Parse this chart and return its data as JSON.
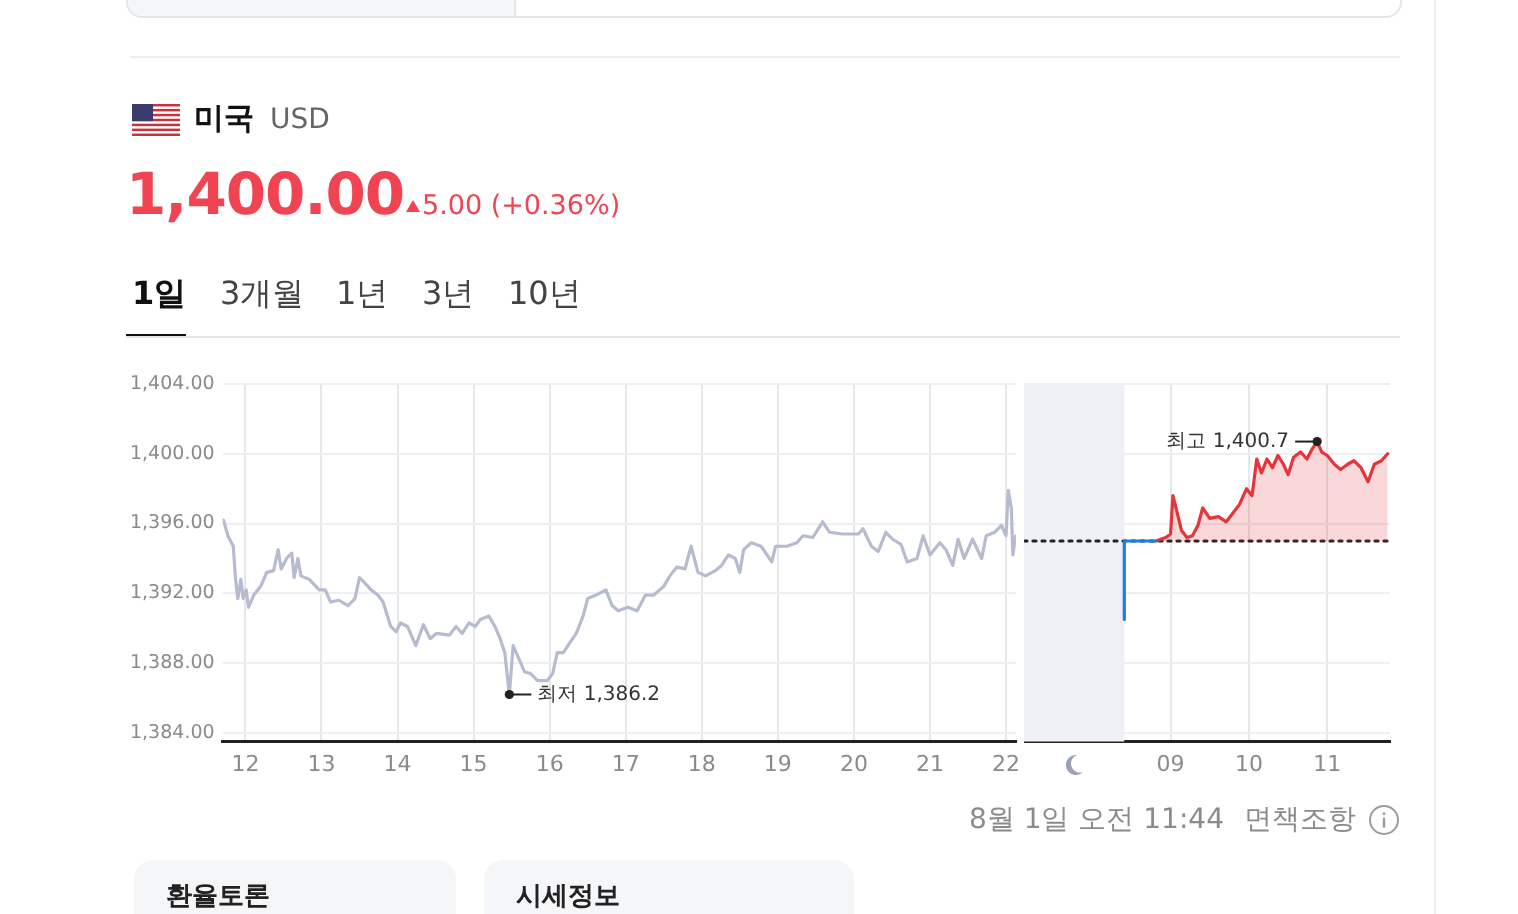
{
  "chart_data": [
    {
      "type": "line",
      "title": "미국",
      "subtitle": "USD",
      "annotations": [
        "1,400.00",
        "5.00 (+0.36%)",
        "1일",
        "3개월",
        "1년",
        "3년",
        "10년",
        {
          "text": "최저 1,386.2",
          "x": 15.47,
          "y": 1386.2
        }
      ],
      "xlim": [
        11.7,
        22.13
      ],
      "xticks": [
        12,
        13,
        14,
        15,
        16,
        17,
        18,
        19,
        20,
        21,
        22
      ],
      "ylim": [
        1383.5,
        1404
      ],
      "yticks": [
        {
          "value": 1384,
          "label": "1,384.00"
        },
        {
          "value": 1388,
          "label": "1,388.00"
        },
        {
          "value": 1392,
          "label": "1,392.00"
        },
        {
          "value": 1396,
          "label": "1,396.00"
        },
        {
          "value": 1400,
          "label": "1,400.00"
        },
        {
          "value": 1404,
          "label": "1,404.00"
        }
      ],
      "grid": true,
      "legend": false,
      "series": [
        {
          "color": "#b7bbd0",
          "x": [
            11.71,
            11.77,
            11.84,
            11.87,
            11.9,
            11.94,
            11.97,
            12.01,
            12.04,
            12.11,
            12.2,
            12.28,
            12.37,
            12.43,
            12.47,
            12.54,
            12.61,
            12.64,
            12.69,
            12.73,
            12.84,
            12.97,
            13.05,
            13.12,
            13.23,
            13.35,
            13.44,
            13.5,
            13.59,
            13.65,
            13.74,
            13.81,
            13.91,
            13.98,
            14.04,
            14.13,
            14.24,
            14.34,
            14.43,
            14.51,
            14.68,
            14.77,
            14.85,
            14.94,
            15.02,
            15.09,
            15.2,
            15.28,
            15.35,
            15.41,
            15.47,
            15.52,
            15.58,
            15.67,
            15.75,
            15.84,
            15.97,
            16.04,
            16.1,
            16.18,
            16.27,
            16.35,
            16.44,
            16.5,
            16.61,
            16.74,
            16.82,
            16.9,
            17.03,
            17.15,
            17.26,
            17.37,
            17.5,
            17.58,
            17.67,
            17.78,
            17.86,
            17.95,
            18.05,
            18.18,
            18.26,
            18.35,
            18.44,
            18.5,
            18.55,
            18.65,
            18.78,
            18.92,
            18.97,
            19.12,
            19.25,
            19.33,
            19.46,
            19.59,
            19.68,
            19.85,
            20.06,
            20.12,
            20.23,
            20.32,
            20.42,
            20.51,
            20.62,
            20.7,
            20.83,
            20.91,
            21.0,
            21.13,
            21.21,
            21.3,
            21.37,
            21.45,
            21.56,
            21.68,
            21.74,
            21.85,
            21.94,
            22.0,
            22.03,
            22.07,
            22.09,
            22.13
          ],
          "values": [
            1396.2,
            1395.3,
            1394.7,
            1392.8,
            1391.7,
            1392.8,
            1391.7,
            1392.2,
            1391.2,
            1391.9,
            1392.4,
            1393.2,
            1393.3,
            1394.5,
            1393.4,
            1394.0,
            1394.3,
            1392.9,
            1394.0,
            1393.0,
            1392.8,
            1392.2,
            1392.2,
            1391.5,
            1391.6,
            1391.3,
            1391.7,
            1392.9,
            1392.5,
            1392.2,
            1391.9,
            1391.5,
            1390.1,
            1389.8,
            1390.3,
            1390.1,
            1389.0,
            1390.2,
            1389.4,
            1389.7,
            1389.6,
            1390.1,
            1389.7,
            1390.3,
            1390.1,
            1390.5,
            1390.7,
            1390.1,
            1389.4,
            1388.6,
            1386.2,
            1389.0,
            1388.4,
            1387.5,
            1387.4,
            1387.0,
            1387.0,
            1387.4,
            1388.6,
            1388.6,
            1389.2,
            1389.7,
            1390.7,
            1391.7,
            1391.9,
            1392.2,
            1391.3,
            1391.0,
            1391.2,
            1391.0,
            1391.9,
            1391.9,
            1392.4,
            1393.0,
            1393.5,
            1393.4,
            1394.7,
            1393.2,
            1393.0,
            1393.3,
            1393.6,
            1394.2,
            1394.0,
            1393.2,
            1394.5,
            1394.9,
            1394.7,
            1393.8,
            1394.7,
            1394.7,
            1394.9,
            1395.3,
            1395.2,
            1396.1,
            1395.5,
            1395.4,
            1395.4,
            1395.7,
            1394.7,
            1394.4,
            1395.5,
            1395.1,
            1394.8,
            1393.8,
            1394.0,
            1395.3,
            1394.2,
            1394.9,
            1394.5,
            1393.6,
            1395.1,
            1394.0,
            1395.1,
            1394.0,
            1395.3,
            1395.5,
            1395.9,
            1395.3,
            1397.9,
            1396.9,
            1394.2,
            1395.3
          ]
        }
      ]
    },
    {
      "type": "line",
      "annotations": [
        {
          "text": "최고 1,400.7",
          "x": 10.87,
          "y": 1400.7
        },
        "8월 1일 오전 11:44",
        "면책조항",
        "환율토론",
        "시세정보"
      ],
      "xlim": [
        7.13,
        11.8
      ],
      "xticks": [
        {
          "value": 9,
          "label": "09"
        },
        10,
        11
      ],
      "ylim": [
        1383.5,
        1404
      ],
      "yticks": [
        1384,
        1388,
        1392,
        1396,
        1400,
        1404
      ],
      "tick_labels": "x",
      "grid": true,
      "legend": false,
      "bands": [
        {
          "axis": "x",
          "from": 7.13,
          "to": 8.41,
          "color": "#eef0f6"
        }
      ],
      "ref_lines": [
        {
          "axis": "y",
          "value": 1395,
          "color": "#222222",
          "line_style": "dotted"
        }
      ],
      "series": [
        {
          "color": "#1b7ee8",
          "x": [
            8.41,
            8.41,
            8.81
          ],
          "values": [
            1390.5,
            1395.0,
            1395.0
          ]
        },
        {
          "type": "area",
          "color": "#e5353b",
          "x": [
            8.81,
            8.94,
            9.0,
            9.03,
            9.08,
            9.14,
            9.21,
            9.28,
            9.35,
            9.41,
            9.5,
            9.61,
            9.71,
            9.78,
            9.88,
            9.97,
            10.04,
            10.1,
            10.16,
            10.23,
            10.3,
            10.37,
            10.44,
            10.5,
            10.57,
            10.66,
            10.74,
            10.81,
            10.87,
            10.93,
            11.0,
            11.09,
            11.17,
            11.26,
            11.34,
            11.43,
            11.52,
            11.6,
            11.69,
            11.77
          ],
          "values": [
            1395.0,
            1395.2,
            1395.4,
            1397.6,
            1396.7,
            1395.6,
            1395.2,
            1395.3,
            1395.9,
            1396.9,
            1396.3,
            1396.4,
            1396.1,
            1396.5,
            1397.1,
            1398.0,
            1397.6,
            1399.7,
            1398.9,
            1399.7,
            1399.2,
            1399.9,
            1399.4,
            1398.8,
            1399.8,
            1400.1,
            1399.7,
            1400.3,
            1400.7,
            1400.1,
            1399.9,
            1399.4,
            1399.1,
            1399.4,
            1399.6,
            1399.2,
            1398.4,
            1399.4,
            1399.6,
            1400.0
          ]
        }
      ]
    }
  ]
}
